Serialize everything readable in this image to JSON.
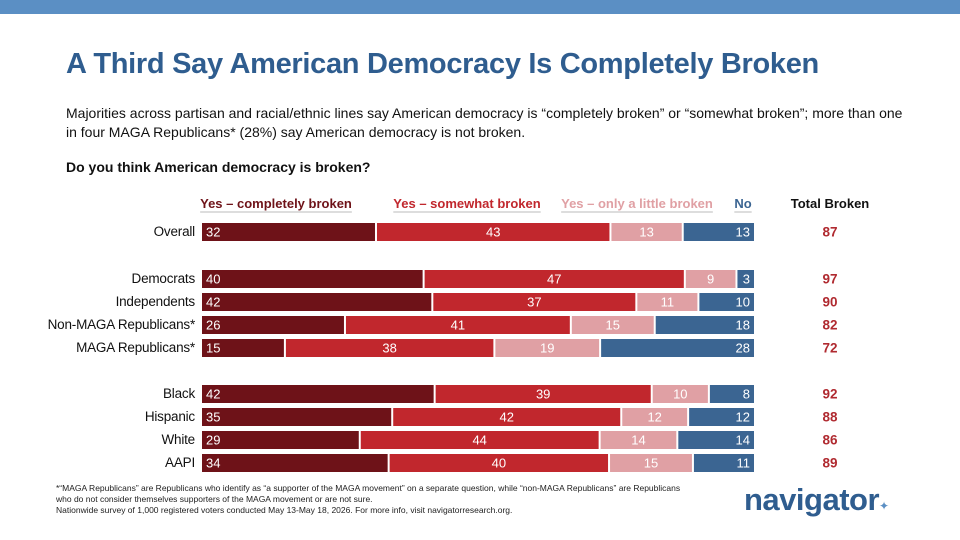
{
  "title": "A Third Say American Democracy Is Completely Broken",
  "subtitle": "Majorities across partisan and racial/ethnic lines say American democracy is “completely broken” or “somewhat broken”; more than one in four MAGA Republicans* (28%) say American democracy is not broken.",
  "question": "Do you think American democracy is broken?",
  "footnote": {
    "line1": "*“MAGA Republicans” are Republicans who identify as “a supporter of the MAGA movement” on a separate question, while “non-MAGA Republicans” are Republicans who do not consider themselves supporters of the MAGA movement or are not sure.",
    "line2": "Nationwide survey of 1,000 registered voters conducted May 13-May 18, 2026. For more info, visit navigatorresearch.org."
  },
  "logo": {
    "text": "navigator",
    "dot": "✦"
  },
  "colors": {
    "completely": "#6e1218",
    "somewhat": "#c1272d",
    "little": "#e0a0a4",
    "no": "#3b6592",
    "total": "#b02a30",
    "accent": "#2f5d8f"
  },
  "chart_data": {
    "type": "bar",
    "orientation": "horizontal",
    "stacked": true,
    "legend_placement": "top",
    "total_header": "Total Broken",
    "series": [
      {
        "name": "Yes – completely broken",
        "color": "#6e1218"
      },
      {
        "name": "Yes – somewhat broken",
        "color": "#c1272d"
      },
      {
        "name": "Yes – only a little broken",
        "color": "#e0a0a4"
      },
      {
        "name": "No",
        "color": "#3b6592"
      }
    ],
    "rows": [
      {
        "label": "Overall",
        "values": [
          32,
          43,
          13,
          13
        ],
        "total": "87",
        "group": 0
      },
      {
        "label": "Democrats",
        "values": [
          40,
          47,
          9,
          3
        ],
        "total": "97",
        "group": 1
      },
      {
        "label": "Independents",
        "values": [
          42,
          37,
          11,
          10
        ],
        "total": "90",
        "group": 1
      },
      {
        "label": "Non-MAGA Republicans*",
        "values": [
          26,
          41,
          15,
          18
        ],
        "total": "82",
        "group": 1
      },
      {
        "label": "MAGA Republicans*",
        "values": [
          15,
          38,
          19,
          28
        ],
        "total": "72",
        "group": 1
      },
      {
        "label": "Black",
        "values": [
          42,
          39,
          10,
          8
        ],
        "total": "92",
        "group": 2
      },
      {
        "label": "Hispanic",
        "values": [
          35,
          42,
          12,
          12
        ],
        "total": "88",
        "group": 2
      },
      {
        "label": "White",
        "values": [
          29,
          44,
          14,
          14
        ],
        "total": "86",
        "group": 2
      },
      {
        "label": "AAPI",
        "values": [
          34,
          40,
          15,
          11
        ],
        "total": "89",
        "group": 2
      }
    ]
  }
}
